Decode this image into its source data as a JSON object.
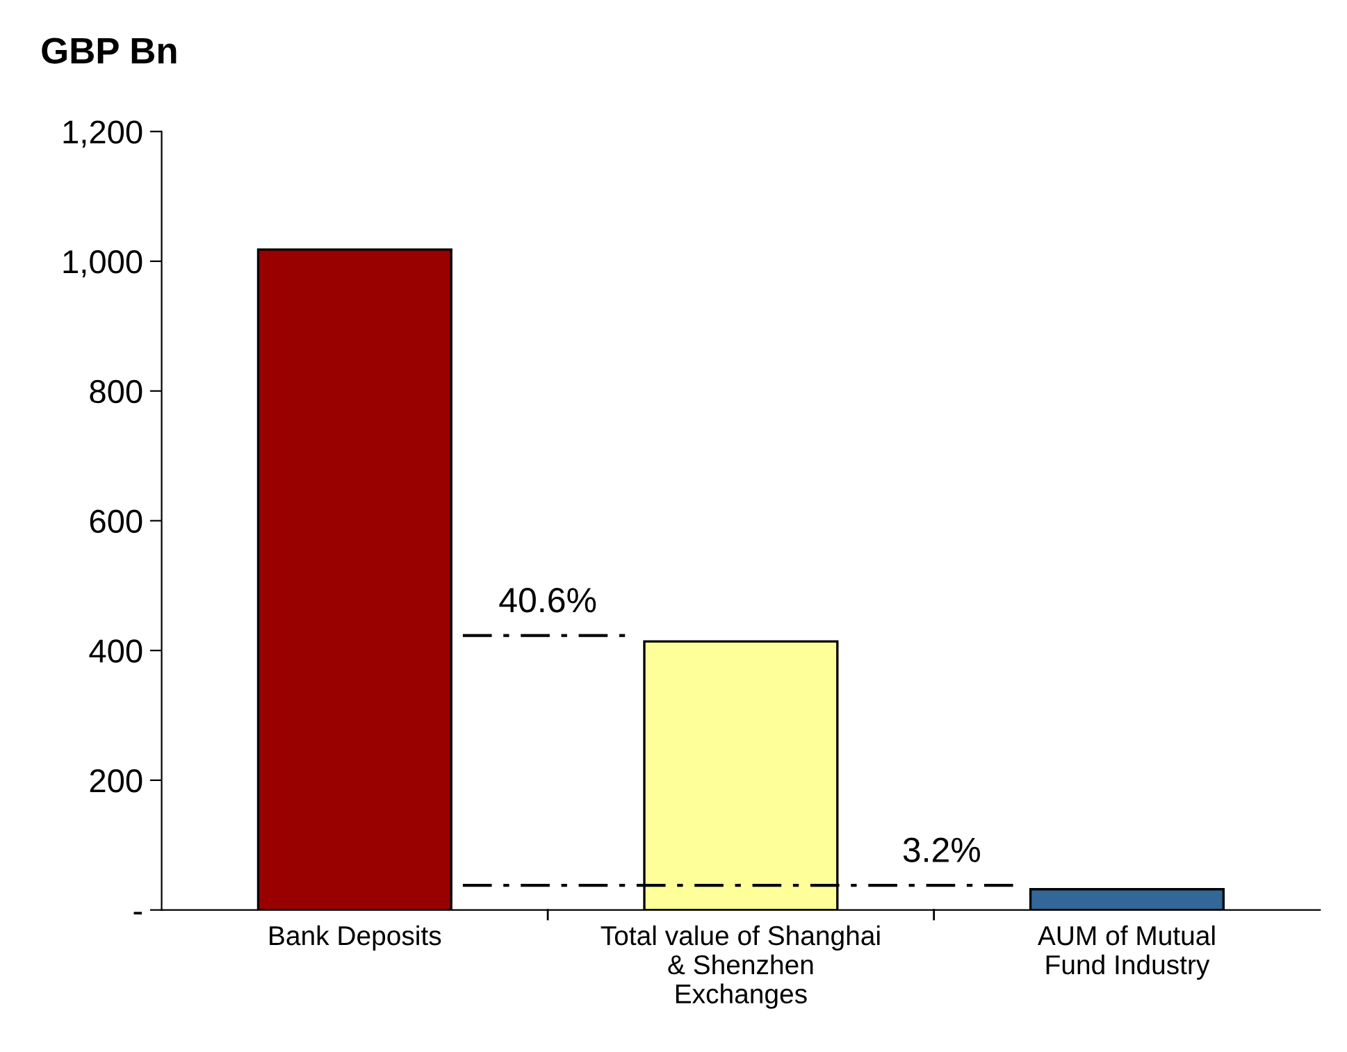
{
  "chart_data": {
    "type": "bar",
    "ylabel": "GBP Bn",
    "categories": [
      "Bank Deposits",
      "Total value of Shanghai\n& Shenzhen\nExchanges",
      "AUM of Mutual\nFund Industry"
    ],
    "values": [
      1018,
      414,
      32
    ],
    "colors": [
      "#990000",
      "#ffff99",
      "#336699"
    ],
    "ylim": [
      0,
      1200
    ],
    "yticks": [
      {
        "value": 0,
        "label": "-"
      },
      200,
      400,
      600,
      800,
      {
        "value": 1000,
        "label": "1,000"
      },
      {
        "value": 1200,
        "label": "1,200"
      }
    ],
    "ref_lines": [
      {
        "axis": "y",
        "value": 423,
        "color": "#000000",
        "line_style": "dashdot"
      },
      {
        "axis": "y",
        "value": 38,
        "color": "#000000",
        "line_style": "dashdot"
      }
    ],
    "annotations": [
      "40.6%",
      "3.2%"
    ],
    "grid": false,
    "legend": false
  }
}
